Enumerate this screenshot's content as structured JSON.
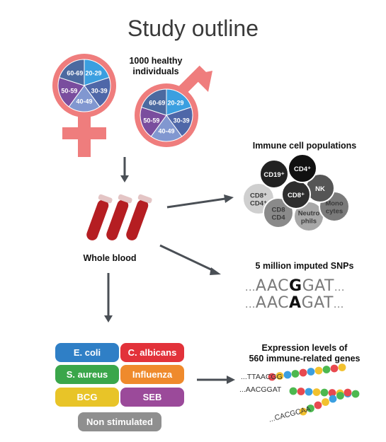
{
  "title": "Study outline",
  "participants": "1000 healthy individuals",
  "age_groups": [
    "20-29",
    "30-39",
    "40-49",
    "50-59",
    "60-69"
  ],
  "whole_blood": "Whole blood",
  "immune_cells": {
    "title": "Immune cell populations",
    "cells": [
      {
        "label": "CD4⁺",
        "color": "#111111"
      },
      {
        "label": "CD19⁺",
        "color": "#222222"
      },
      {
        "label": "NK",
        "color": "#555555"
      },
      {
        "label": "CD8⁺",
        "color": "#2e2e2e"
      },
      {
        "label": "CD8⁺ CD4⁺",
        "color": "#cfcfcf"
      },
      {
        "label": "CD8 CD4",
        "color": "#8a8a8a"
      },
      {
        "label": "Neutro phils",
        "color": "#a8a8a8"
      },
      {
        "label": "Mono cytes",
        "color": "#7a7a7a"
      }
    ]
  },
  "snps": {
    "title": "5 million imputed SNPs",
    "seq1": {
      "prefix": "AAC",
      "highlight": "G",
      "suffix": "GAT"
    },
    "seq2": {
      "prefix": "AAC",
      "highlight": "A",
      "suffix": "GAT"
    }
  },
  "expression": {
    "title_line1": "Expression levels of",
    "title_line2": "560 immune-related genes",
    "sequences": [
      "TTAACGG",
      "AACGGAT",
      "CACGCAA"
    ]
  },
  "stimuli": [
    {
      "label": "E. coli",
      "color": "#2f7fc6"
    },
    {
      "label": "C. albicans",
      "color": "#e2323a"
    },
    {
      "label": "S. aureus",
      "color": "#3aa64a"
    },
    {
      "label": "Influenza",
      "color": "#ef8a2c"
    },
    {
      "label": "BCG",
      "color": "#e8c428"
    },
    {
      "label": "SEB",
      "color": "#9b4a9a"
    },
    {
      "label": "Non stimulated",
      "color": "#8f8f8f"
    }
  ],
  "colors": {
    "gender_symbol": "#ef7d7d",
    "slice_20_29": "#3b9fe0",
    "slice_30_39": "#4f67a8",
    "slice_40_49": "#8197d0",
    "slice_50_59": "#7a4d9e",
    "slice_60_69": "#4c6aa0",
    "arrow": "#4a4f55",
    "tube_blood": "#b51e22"
  }
}
